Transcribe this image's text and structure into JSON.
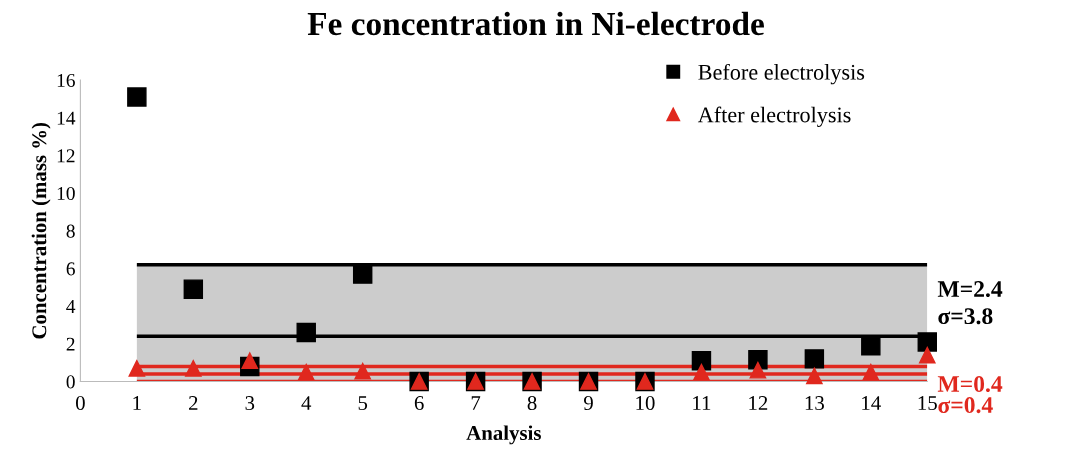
{
  "chart_data": {
    "type": "scatter",
    "title": "Fe concentration in Ni-electrode",
    "xlabel": "Analysis",
    "ylabel": "Concentration (mass %)",
    "x": [
      1,
      2,
      3,
      4,
      5,
      6,
      7,
      8,
      9,
      10,
      11,
      12,
      13,
      14,
      15
    ],
    "series": [
      {
        "name": "Before electrolysis",
        "color": "#000000",
        "marker": "square",
        "values": [
          15.1,
          4.9,
          0.8,
          2.6,
          5.7,
          0,
          0,
          0,
          0,
          0,
          1.1,
          1.15,
          1.2,
          1.9,
          2.1
        ]
      },
      {
        "name": "After electrolysis",
        "color": "#e0281e",
        "marker": "triangle",
        "values": [
          0.7,
          0.7,
          1.1,
          0.5,
          0.55,
          0,
          0,
          0,
          0,
          0,
          0.5,
          0.6,
          0.3,
          0.5,
          1.4
        ]
      }
    ],
    "xlim": [
      0,
      15
    ],
    "xticks": [
      0,
      1,
      2,
      3,
      4,
      5,
      6,
      7,
      8,
      9,
      10,
      11,
      12,
      13,
      14,
      15
    ],
    "ylim": [
      0,
      16
    ],
    "yticks": [
      0,
      2,
      4,
      6,
      8,
      10,
      12,
      14,
      16
    ],
    "bands": [
      {
        "axis": "y",
        "from": 0,
        "to": 6.2,
        "color": "#cccccc"
      }
    ],
    "ref_lines": [
      {
        "axis": "y",
        "value": 6.2,
        "color": "#000000"
      },
      {
        "axis": "y",
        "value": 2.4,
        "color": "#000000",
        "label": "M=2.4"
      },
      {
        "axis": "y",
        "value": 0.8,
        "color": "#e0281e"
      },
      {
        "axis": "y",
        "value": 0.4,
        "color": "#e0281e",
        "label": "M=0.4"
      },
      {
        "axis": "y",
        "value": 0,
        "color": "#e0281e"
      }
    ],
    "annotations": [
      "σ=3.8",
      "σ=0.4"
    ],
    "grid": false,
    "legend": "top right"
  }
}
